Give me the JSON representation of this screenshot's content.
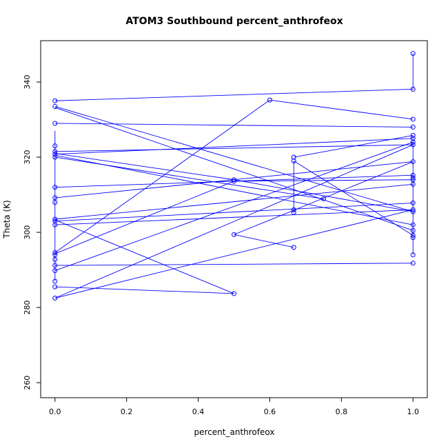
{
  "chart_data": {
    "type": "scatter",
    "title": "ATOM3 Southbound percent_anthrofeox",
    "xlabel": "percent_anthrofeox",
    "ylabel": "Theta (K)",
    "xlim": [
      -0.04,
      1.04
    ],
    "ylim": [
      256,
      351
    ],
    "xticks": [
      0.0,
      0.2,
      0.4,
      0.6,
      0.8,
      1.0
    ],
    "xtick_labels": [
      "0.0",
      "0.2",
      "0.4",
      "0.6",
      "0.8",
      "1.0"
    ],
    "yticks": [
      260,
      280,
      300,
      320,
      340
    ],
    "ytick_labels": [
      "260",
      "280",
      "300",
      "320",
      "340"
    ],
    "color": "#0000ff",
    "marker": "open-circle",
    "grid": false,
    "legend": "none",
    "points": [
      {
        "x": 0.0,
        "y": 335.0
      },
      {
        "x": 0.0,
        "y": 333.5
      },
      {
        "x": 0.0,
        "y": 329.0
      },
      {
        "x": 0.0,
        "y": 323.0
      },
      {
        "x": 0.0,
        "y": 321.5
      },
      {
        "x": 0.0,
        "y": 320.8
      },
      {
        "x": 0.0,
        "y": 320.0
      },
      {
        "x": 0.0,
        "y": 312.0
      },
      {
        "x": 0.0,
        "y": 309.2
      },
      {
        "x": 0.0,
        "y": 308.0
      },
      {
        "x": 0.0,
        "y": 303.5
      },
      {
        "x": 0.0,
        "y": 303.0
      },
      {
        "x": 0.0,
        "y": 302.0
      },
      {
        "x": 0.0,
        "y": 294.6
      },
      {
        "x": 0.0,
        "y": 294.0
      },
      {
        "x": 0.0,
        "y": 292.8
      },
      {
        "x": 0.0,
        "y": 291.2
      },
      {
        "x": 0.0,
        "y": 289.8
      },
      {
        "x": 0.0,
        "y": 287.0
      },
      {
        "x": 0.0,
        "y": 285.5
      },
      {
        "x": 0.0,
        "y": 282.5
      },
      {
        "x": 0.5,
        "y": 314.0
      },
      {
        "x": 0.5,
        "y": 313.6
      },
      {
        "x": 0.5,
        "y": 299.4
      },
      {
        "x": 0.5,
        "y": 283.7
      },
      {
        "x": 0.6,
        "y": 335.2
      },
      {
        "x": 0.667,
        "y": 320.0
      },
      {
        "x": 0.667,
        "y": 319.0
      },
      {
        "x": 0.667,
        "y": 306.0
      },
      {
        "x": 0.667,
        "y": 305.3
      },
      {
        "x": 0.667,
        "y": 296.0
      },
      {
        "x": 0.75,
        "y": 308.9
      },
      {
        "x": 1.0,
        "y": 347.6
      },
      {
        "x": 1.0,
        "y": 338.1
      },
      {
        "x": 1.0,
        "y": 330.1
      },
      {
        "x": 1.0,
        "y": 328.0
      },
      {
        "x": 1.0,
        "y": 325.8
      },
      {
        "x": 1.0,
        "y": 325.0
      },
      {
        "x": 1.0,
        "y": 324.0
      },
      {
        "x": 1.0,
        "y": 323.3
      },
      {
        "x": 1.0,
        "y": 318.8
      },
      {
        "x": 1.0,
        "y": 315.2
      },
      {
        "x": 1.0,
        "y": 314.5
      },
      {
        "x": 1.0,
        "y": 314.0
      },
      {
        "x": 1.0,
        "y": 312.8
      },
      {
        "x": 1.0,
        "y": 307.8
      },
      {
        "x": 1.0,
        "y": 306.0
      },
      {
        "x": 1.0,
        "y": 305.5
      },
      {
        "x": 1.0,
        "y": 302.0
      },
      {
        "x": 1.0,
        "y": 300.5
      },
      {
        "x": 1.0,
        "y": 299.2
      },
      {
        "x": 1.0,
        "y": 298.6
      },
      {
        "x": 1.0,
        "y": 294.0
      },
      {
        "x": 1.0,
        "y": 291.8
      }
    ],
    "segments": [
      [
        0.0,
        335.0,
        1.0,
        338.1
      ],
      [
        1.0,
        338.1,
        1.0,
        347.6
      ],
      [
        0.0,
        333.5,
        1.0,
        305.5
      ],
      [
        0.0,
        333.2,
        1.0,
        300.5
      ],
      [
        0.0,
        329.0,
        1.0,
        328.0
      ],
      [
        0.0,
        321.5,
        1.0,
        323.3
      ],
      [
        0.0,
        320.8,
        1.0,
        325.0
      ],
      [
        0.0,
        321.0,
        0.5,
        314.0
      ],
      [
        0.5,
        314.0,
        1.0,
        305.5
      ],
      [
        0.0,
        320.0,
        0.75,
        308.9
      ],
      [
        0.0,
        320.5,
        1.0,
        302.0
      ],
      [
        0.0,
        312.0,
        1.0,
        315.2
      ],
      [
        0.0,
        309.2,
        1.0,
        318.8
      ],
      [
        0.0,
        303.5,
        1.0,
        312.8
      ],
      [
        0.0,
        303.0,
        1.0,
        307.8
      ],
      [
        0.0,
        303.3,
        0.5,
        283.7
      ],
      [
        0.0,
        302.0,
        1.0,
        306.0
      ],
      [
        0.0,
        294.6,
        0.6,
        335.2
      ],
      [
        0.6,
        335.2,
        1.0,
        330.1
      ],
      [
        0.0,
        294.3,
        0.5,
        313.6
      ],
      [
        0.5,
        313.6,
        1.0,
        314.0
      ],
      [
        0.0,
        291.2,
        1.0,
        291.8
      ],
      [
        0.0,
        289.8,
        1.0,
        324.0
      ],
      [
        0.0,
        285.5,
        0.5,
        283.7
      ],
      [
        0.0,
        282.5,
        1.0,
        323.3
      ],
      [
        0.0,
        282.5,
        1.0,
        306.0
      ],
      [
        0.5,
        299.4,
        0.667,
        296.0
      ],
      [
        0.5,
        299.4,
        1.0,
        318.8
      ],
      [
        0.667,
        320.0,
        1.0,
        325.8
      ],
      [
        0.667,
        319.0,
        1.0,
        299.2
      ],
      [
        0.667,
        319.0,
        0.667,
        305.3
      ],
      [
        0.0,
        327.0,
        0.0,
        287.0
      ],
      [
        1.0,
        325.0,
        1.0,
        294.0
      ]
    ]
  }
}
